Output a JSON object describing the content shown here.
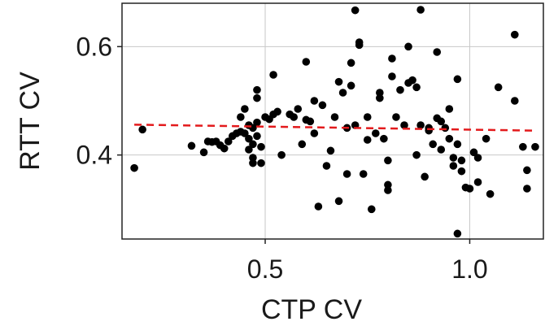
{
  "chart_data": {
    "type": "scatter",
    "title": "",
    "xlabel": "CTP CV",
    "ylabel": "RTT CV",
    "xlim": [
      0.15,
      1.18
    ],
    "ylim": [
      0.245,
      0.68
    ],
    "xticks": [
      0.5,
      1.0
    ],
    "xtick_labels": [
      "0.5",
      "1.0"
    ],
    "yticks": [
      0.4,
      0.6
    ],
    "ytick_labels": [
      "0.4",
      "0.6"
    ],
    "grid": true,
    "colors": {
      "points": "#000000",
      "trend": "#e31a1c"
    },
    "series": [
      {
        "points": [
          [
            0.18,
            0.376
          ],
          [
            0.2,
            0.447
          ],
          [
            0.32,
            0.417
          ],
          [
            0.35,
            0.405
          ],
          [
            0.36,
            0.425
          ],
          [
            0.37,
            0.424
          ],
          [
            0.38,
            0.425
          ],
          [
            0.39,
            0.418
          ],
          [
            0.4,
            0.412
          ],
          [
            0.41,
            0.425
          ],
          [
            0.42,
            0.435
          ],
          [
            0.43,
            0.44
          ],
          [
            0.44,
            0.443
          ],
          [
            0.44,
            0.47
          ],
          [
            0.45,
            0.485
          ],
          [
            0.45,
            0.44
          ],
          [
            0.46,
            0.455
          ],
          [
            0.46,
            0.43
          ],
          [
            0.46,
            0.41
          ],
          [
            0.47,
            0.45
          ],
          [
            0.47,
            0.42
          ],
          [
            0.47,
            0.395
          ],
          [
            0.47,
            0.385
          ],
          [
            0.48,
            0.46
          ],
          [
            0.48,
            0.435
          ],
          [
            0.48,
            0.52
          ],
          [
            0.48,
            0.505
          ],
          [
            0.49,
            0.415
          ],
          [
            0.49,
            0.385
          ],
          [
            0.5,
            0.47
          ],
          [
            0.51,
            0.466
          ],
          [
            0.52,
            0.475
          ],
          [
            0.52,
            0.548
          ],
          [
            0.53,
            0.48
          ],
          [
            0.54,
            0.4
          ],
          [
            0.56,
            0.475
          ],
          [
            0.57,
            0.47
          ],
          [
            0.58,
            0.485
          ],
          [
            0.59,
            0.42
          ],
          [
            0.6,
            0.465
          ],
          [
            0.6,
            0.572
          ],
          [
            0.61,
            0.462
          ],
          [
            0.62,
            0.5
          ],
          [
            0.62,
            0.44
          ],
          [
            0.63,
            0.305
          ],
          [
            0.64,
            0.492
          ],
          [
            0.65,
            0.38
          ],
          [
            0.66,
            0.408
          ],
          [
            0.67,
            0.47
          ],
          [
            0.68,
            0.535
          ],
          [
            0.68,
            0.315
          ],
          [
            0.69,
            0.515
          ],
          [
            0.7,
            0.45
          ],
          [
            0.7,
            0.365
          ],
          [
            0.71,
            0.57
          ],
          [
            0.71,
            0.528
          ],
          [
            0.72,
            0.455
          ],
          [
            0.72,
            0.667
          ],
          [
            0.73,
            0.608
          ],
          [
            0.73,
            0.603
          ],
          [
            0.74,
            0.365
          ],
          [
            0.75,
            0.47
          ],
          [
            0.75,
            0.428
          ],
          [
            0.76,
            0.3
          ],
          [
            0.77,
            0.44
          ],
          [
            0.78,
            0.505
          ],
          [
            0.78,
            0.515
          ],
          [
            0.79,
            0.43
          ],
          [
            0.8,
            0.39
          ],
          [
            0.8,
            0.345
          ],
          [
            0.8,
            0.335
          ],
          [
            0.81,
            0.545
          ],
          [
            0.81,
            0.578
          ],
          [
            0.82,
            0.47
          ],
          [
            0.83,
            0.52
          ],
          [
            0.84,
            0.455
          ],
          [
            0.85,
            0.6
          ],
          [
            0.85,
            0.533
          ],
          [
            0.86,
            0.538
          ],
          [
            0.87,
            0.4
          ],
          [
            0.87,
            0.525
          ],
          [
            0.88,
            0.455
          ],
          [
            0.88,
            0.668
          ],
          [
            0.89,
            0.36
          ],
          [
            0.9,
            0.45
          ],
          [
            0.9,
            0.445
          ],
          [
            0.91,
            0.42
          ],
          [
            0.92,
            0.59
          ],
          [
            0.92,
            0.468
          ],
          [
            0.93,
            0.462
          ],
          [
            0.93,
            0.41
          ],
          [
            0.94,
            0.45
          ],
          [
            0.95,
            0.485
          ],
          [
            0.95,
            0.43
          ],
          [
            0.96,
            0.395
          ],
          [
            0.96,
            0.38
          ],
          [
            0.97,
            0.54
          ],
          [
            0.97,
            0.42
          ],
          [
            0.97,
            0.255
          ],
          [
            0.98,
            0.39
          ],
          [
            0.98,
            0.37
          ],
          [
            0.99,
            0.34
          ],
          [
            1.0,
            0.338
          ],
          [
            1.01,
            0.405
          ],
          [
            1.02,
            0.395
          ],
          [
            1.02,
            0.35
          ],
          [
            1.04,
            0.43
          ],
          [
            1.05,
            0.328
          ],
          [
            1.07,
            0.525
          ],
          [
            1.11,
            0.622
          ],
          [
            1.11,
            0.5
          ],
          [
            1.13,
            0.415
          ],
          [
            1.14,
            0.372
          ],
          [
            1.14,
            0.338
          ],
          [
            1.16,
            0.415
          ]
        ]
      }
    ],
    "trend_line": {
      "x": [
        0.18,
        1.16
      ],
      "y": [
        0.456,
        0.445
      ]
    }
  }
}
